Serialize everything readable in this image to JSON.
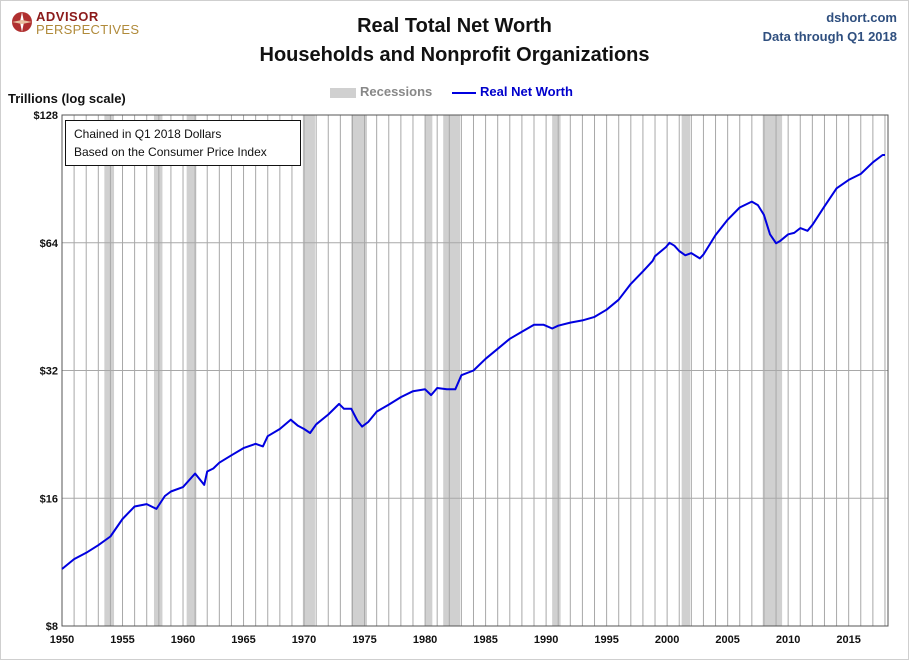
{
  "header": {
    "logo_line1": "ADVISOR",
    "logo_line2": "PERSPECTIVES",
    "title_line1": "Real Total Net Worth",
    "title_line2": "Households and Nonprofit Organizations",
    "source_line1": "dshort.com",
    "source_line2": "Data through Q1 2018"
  },
  "annotation": {
    "line1": "Chained in Q1 2018  Dollars",
    "line2": "Based on the Consumer Price Index"
  },
  "colors": {
    "series": "#0000e0",
    "recession": "#d0d0d0",
    "grid": "#a8a8a8"
  },
  "chart_data": {
    "type": "line",
    "title": "Real Total Net Worth — Households and Nonprofit Organizations",
    "ylabel": "Trillions (log scale)",
    "y_scale": "log2",
    "ylim": [
      8,
      128
    ],
    "xlim": [
      1950,
      2018.25
    ],
    "y_ticks": [
      8,
      16,
      32,
      64,
      128
    ],
    "y_tick_labels": [
      "$8",
      "$16",
      "$32",
      "$64",
      "$128"
    ],
    "x_ticks": [
      1950,
      1955,
      1960,
      1965,
      1970,
      1975,
      1980,
      1985,
      1990,
      1995,
      2000,
      2005,
      2010,
      2015
    ],
    "x_tick_labels": [
      "1950",
      "1955",
      "1960",
      "1965",
      "1970",
      "1975",
      "1980",
      "1985",
      "1990",
      "1995",
      "2000",
      "2005",
      "2010",
      "2015"
    ],
    "grid": "vertical lines every year, horizontal lines at y ticks",
    "legend": {
      "placement": "top-center",
      "entries": [
        "Recessions",
        "Real Net Worth"
      ]
    },
    "recessions": [
      [
        1953.5,
        1954.3
      ],
      [
        1957.6,
        1958.3
      ],
      [
        1960.3,
        1961.1
      ],
      [
        1969.9,
        1970.9
      ],
      [
        1973.9,
        1975.2
      ],
      [
        1980.0,
        1980.6
      ],
      [
        1981.5,
        1982.9
      ],
      [
        1990.5,
        1991.2
      ],
      [
        2001.2,
        2001.9
      ],
      [
        2007.9,
        2009.5
      ]
    ],
    "series": [
      {
        "name": "Real Net Worth",
        "x": [
          1950,
          1951,
          1952,
          1953,
          1954,
          1955,
          1956,
          1957,
          1957.8,
          1958.5,
          1959,
          1960,
          1961,
          1961.75,
          1962,
          1962.5,
          1963,
          1964,
          1965,
          1966,
          1966.6,
          1967,
          1968,
          1968.9,
          1969.5,
          1970,
          1970.5,
          1971,
          1972,
          1972.9,
          1973.3,
          1973.9,
          1974.4,
          1974.8,
          1975.3,
          1976,
          1977,
          1978,
          1979,
          1980,
          1980.5,
          1981,
          1981.8,
          1982.5,
          1983,
          1984,
          1985,
          1986,
          1987,
          1988,
          1989,
          1989.8,
          1990.5,
          1991,
          1992,
          1993,
          1994,
          1995,
          1996,
          1997,
          1998,
          1998.8,
          1999,
          1999.9,
          2000.2,
          2000.6,
          2001,
          2001.5,
          2002,
          2002.7,
          2003,
          2004,
          2005,
          2006,
          2007,
          2007.5,
          2008,
          2008.5,
          2009,
          2009.3,
          2010,
          2010.5,
          2011,
          2011.6,
          2012,
          2013,
          2014,
          2015,
          2016,
          2017,
          2017.8,
          2018
        ],
        "values": [
          10.9,
          11.5,
          11.9,
          12.4,
          13.0,
          14.3,
          15.3,
          15.5,
          15.1,
          16.2,
          16.6,
          17.0,
          18.3,
          17.2,
          18.5,
          18.8,
          19.4,
          20.2,
          21.0,
          21.5,
          21.2,
          22.4,
          23.3,
          24.5,
          23.7,
          23.3,
          22.8,
          23.9,
          25.2,
          26.7,
          26.0,
          26.0,
          24.4,
          23.6,
          24.2,
          25.6,
          26.6,
          27.7,
          28.6,
          28.9,
          28.0,
          29.1,
          28.9,
          28.9,
          31.2,
          32.0,
          34.1,
          36.0,
          38.0,
          39.5,
          41.0,
          41.0,
          40.2,
          40.8,
          41.5,
          42.0,
          42.8,
          44.5,
          47.0,
          51.2,
          54.8,
          58.0,
          59.5,
          62.5,
          64.0,
          63.0,
          61.2,
          59.8,
          60.5,
          58.8,
          60.0,
          66.7,
          72.5,
          77.5,
          80.0,
          78.5,
          74.5,
          67.0,
          63.8,
          64.5,
          67.0,
          67.5,
          69.3,
          68.3,
          70.5,
          78.0,
          86.0,
          90.0,
          93.0,
          99.0,
          103.0,
          103.0
        ]
      }
    ]
  }
}
